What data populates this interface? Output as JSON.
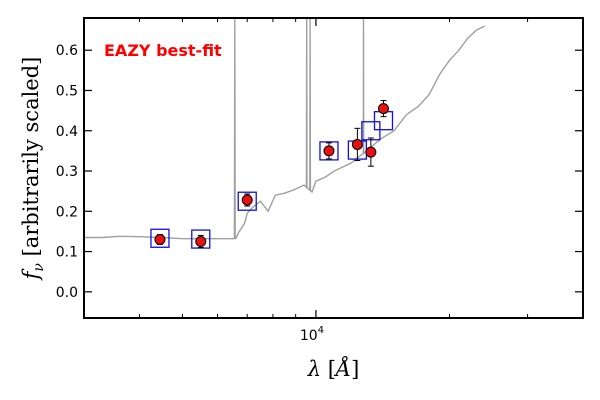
{
  "chart_data": {
    "type": "scatter",
    "title": "",
    "annotation": {
      "text": "EAZY best-fit",
      "color": "#ff0000"
    },
    "xlabel": "λ [Å]",
    "ylabel": "f_ν [arbitrarily scaled]",
    "xscale": "log",
    "xlim": [
      3000,
      40000
    ],
    "ylim": [
      -0.065,
      0.68
    ],
    "grid": false,
    "y_ticks": [
      0.0,
      0.1,
      0.2,
      0.3,
      0.4,
      0.5,
      0.6
    ],
    "y_tick_labels": [
      "0.0",
      "0.1",
      "0.2",
      "0.3",
      "0.4",
      "0.5",
      "0.6"
    ],
    "x_major_ticks": [
      10000
    ],
    "x_tick_labels": [
      {
        "base": "10",
        "exp": "4"
      }
    ],
    "x_minor_ticks": [
      4000,
      5000,
      6000,
      7000,
      8000,
      9000,
      20000,
      30000
    ],
    "colors": {
      "spectrum": "#a0a0a0",
      "observed_fill": "#e81010",
      "observed_edge": "#000000",
      "model_box": "#1010e0"
    },
    "model_photometry": [
      {
        "x": 4450,
        "y": 0.133
      },
      {
        "x": 5500,
        "y": 0.131
      },
      {
        "x": 7000,
        "y": 0.225
      },
      {
        "x": 10700,
        "y": 0.35
      },
      {
        "x": 12400,
        "y": 0.352
      },
      {
        "x": 13300,
        "y": 0.4
      },
      {
        "x": 14200,
        "y": 0.425
      }
    ],
    "observed_photometry": [
      {
        "x": 4450,
        "y": 0.13,
        "yerr": 0.012
      },
      {
        "x": 5500,
        "y": 0.125,
        "yerr": 0.015
      },
      {
        "x": 7000,
        "y": 0.228,
        "yerr": 0.015
      },
      {
        "x": 10700,
        "y": 0.35,
        "yerr": 0.02
      },
      {
        "x": 12400,
        "y": 0.366,
        "yerr": 0.04
      },
      {
        "x": 13300,
        "y": 0.347,
        "yerr": 0.035
      },
      {
        "x": 14200,
        "y": 0.455,
        "yerr": 0.02
      }
    ],
    "spectrum": {
      "continuum": [
        [
          3000,
          0.135
        ],
        [
          3300,
          0.135
        ],
        [
          3600,
          0.138
        ],
        [
          4000,
          0.137
        ],
        [
          4500,
          0.135
        ],
        [
          5000,
          0.132
        ],
        [
          5500,
          0.132
        ],
        [
          6000,
          0.132
        ],
        [
          6500,
          0.132
        ],
        [
          6600,
          0.133
        ],
        [
          6700,
          0.148
        ],
        [
          6900,
          0.17
        ],
        [
          7000,
          0.195
        ],
        [
          7200,
          0.21
        ],
        [
          7500,
          0.225
        ],
        [
          7800,
          0.2
        ],
        [
          8100,
          0.24
        ],
        [
          8500,
          0.245
        ],
        [
          9000,
          0.255
        ],
        [
          9400,
          0.265
        ],
        [
          9800,
          0.248
        ],
        [
          10000,
          0.275
        ],
        [
          10500,
          0.285
        ],
        [
          11000,
          0.3
        ],
        [
          12000,
          0.32
        ],
        [
          13000,
          0.35
        ],
        [
          14000,
          0.38
        ],
        [
          15000,
          0.4
        ],
        [
          16000,
          0.44
        ],
        [
          17000,
          0.46
        ],
        [
          18000,
          0.49
        ],
        [
          19000,
          0.54
        ],
        [
          20000,
          0.575
        ],
        [
          21000,
          0.6
        ],
        [
          22000,
          0.63
        ],
        [
          23000,
          0.65
        ],
        [
          24000,
          0.66
        ]
      ],
      "emission_lines": [
        {
          "x": 6563,
          "peak": 0.68
        },
        {
          "x": 9530,
          "peak": 0.68
        },
        {
          "x": 9700,
          "peak": 0.68
        },
        {
          "x": 12800,
          "peak": 0.68
        }
      ]
    }
  }
}
